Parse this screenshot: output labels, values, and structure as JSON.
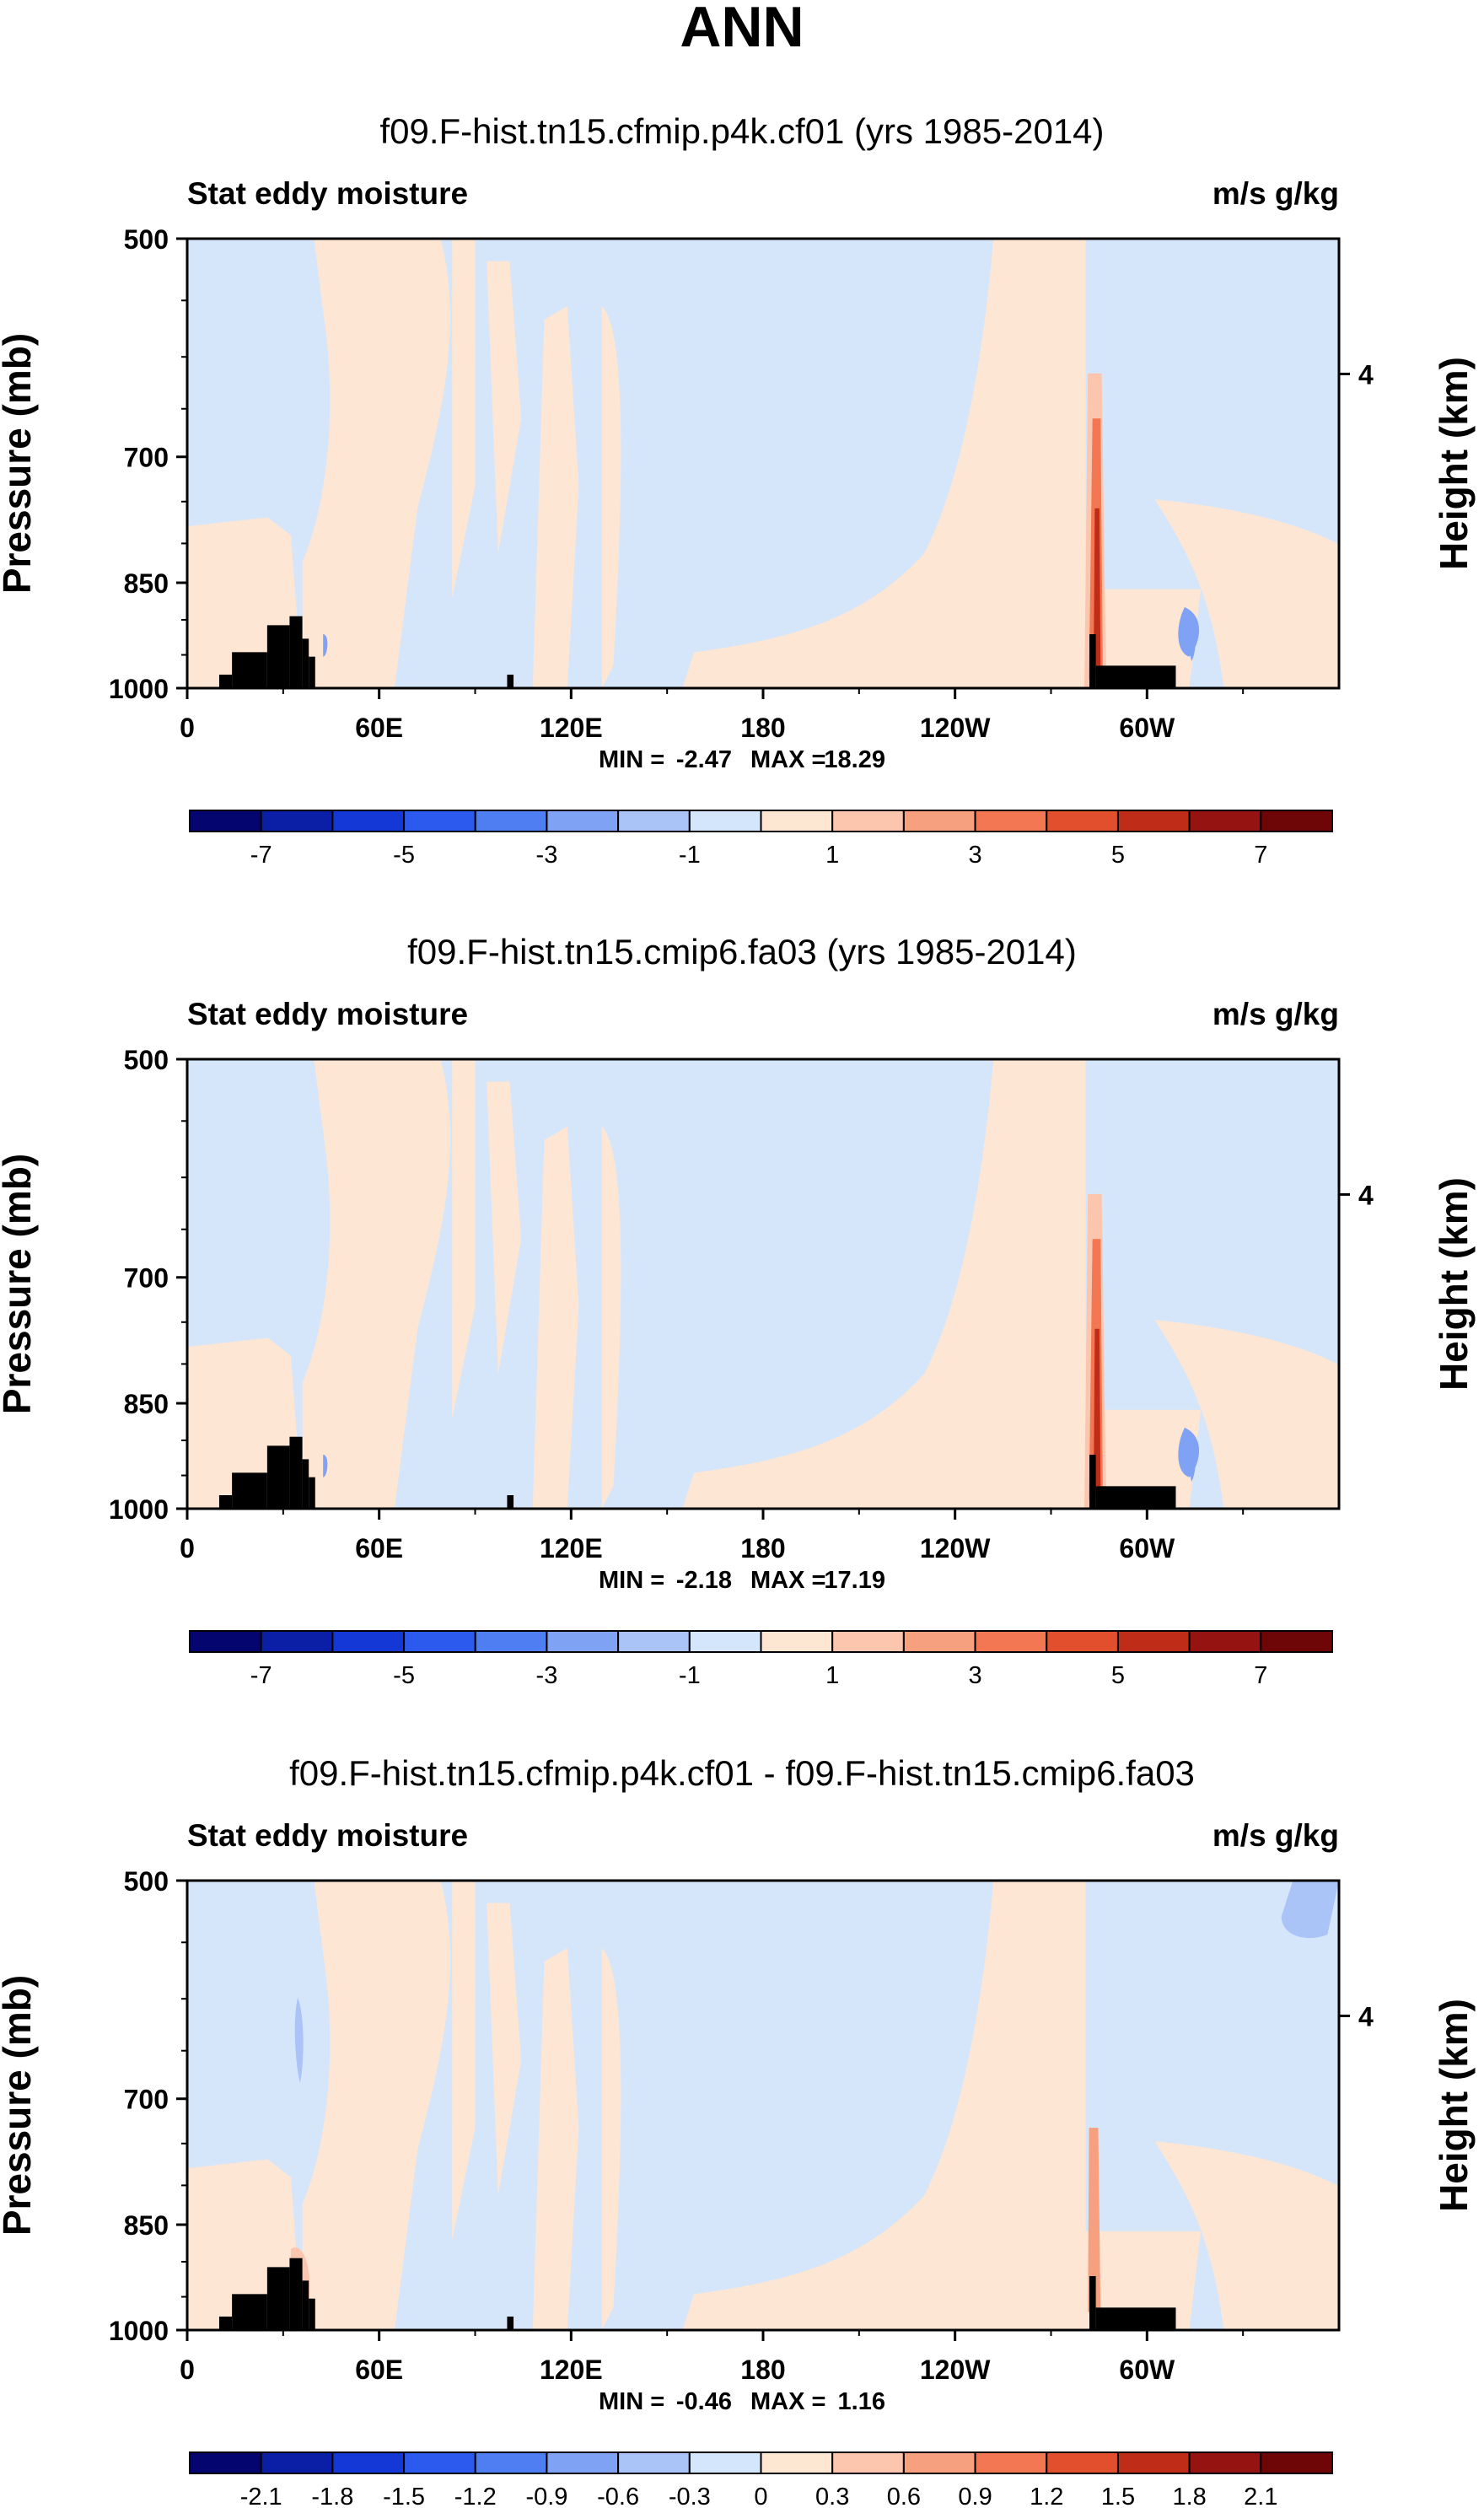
{
  "figure_title": "ANN",
  "colors": {
    "diverging": [
      "#04056e",
      "#0a1fa6",
      "#1338d6",
      "#2c59ee",
      "#4f7df2",
      "#7fa2f4",
      "#aac4f8",
      "#d4e6fb",
      "#fde6d2",
      "#fbc6ad",
      "#f7a07f",
      "#f27752",
      "#e24f2c",
      "#bf2c17",
      "#951411",
      "#6e0608"
    ],
    "ocean_blue": "#d6e6fa",
    "land_orange": "#fde6d4",
    "topo_fill": "#000000"
  },
  "chart_data": [
    {
      "type": "contour",
      "title": "f09.F-hist.tn15.cfmip.p4k.cf01 (yrs 1985-2014)",
      "left_label": "Stat eddy moisture",
      "right_label": "m/s g/kg",
      "ylabel": "Pressure (mb)",
      "ylabel_right": "Height (km)",
      "yticks": [
        "500",
        "700",
        "850",
        "1000"
      ],
      "ytick_values": [
        500,
        700,
        850,
        1000
      ],
      "right_ticks": [
        "4"
      ],
      "right_tick_pressure": 616,
      "xticks": [
        "0",
        "60E",
        "120E",
        "180",
        "120W",
        "60W"
      ],
      "xtick_lon": [
        0,
        60,
        120,
        180,
        240,
        300
      ],
      "xlim": [
        0,
        360
      ],
      "ylim": [
        1000,
        500
      ],
      "min_label": "MIN =",
      "min_value": "-2.47",
      "max_label": "MAX =",
      "max_value": "18.29",
      "colorbar_labels": [
        "-7",
        "-5",
        "-3",
        "-1",
        "1",
        "3",
        "5",
        "7"
      ],
      "contour_levels": [
        -7,
        -6,
        -5,
        -4,
        -3,
        -2,
        -1,
        0,
        1,
        2,
        3,
        4,
        5,
        6,
        7
      ]
    },
    {
      "type": "contour",
      "title": "f09.F-hist.tn15.cmip6.fa03 (yrs 1985-2014)",
      "left_label": "Stat eddy moisture",
      "right_label": "m/s g/kg",
      "ylabel": "Pressure (mb)",
      "ylabel_right": "Height (km)",
      "yticks": [
        "500",
        "700",
        "850",
        "1000"
      ],
      "ytick_values": [
        500,
        700,
        850,
        1000
      ],
      "right_ticks": [
        "4"
      ],
      "right_tick_pressure": 616,
      "xticks": [
        "0",
        "60E",
        "120E",
        "180",
        "120W",
        "60W"
      ],
      "xtick_lon": [
        0,
        60,
        120,
        180,
        240,
        300
      ],
      "xlim": [
        0,
        360
      ],
      "ylim": [
        1000,
        500
      ],
      "min_label": "MIN =",
      "min_value": "-2.18",
      "max_label": "MAX =",
      "max_value": "17.19",
      "colorbar_labels": [
        "-7",
        "-5",
        "-3",
        "-1",
        "1",
        "3",
        "5",
        "7"
      ],
      "contour_levels": [
        -7,
        -6,
        -5,
        -4,
        -3,
        -2,
        -1,
        0,
        1,
        2,
        3,
        4,
        5,
        6,
        7
      ]
    },
    {
      "type": "contour",
      "title": "f09.F-hist.tn15.cfmip.p4k.cf01 - f09.F-hist.tn15.cmip6.fa03",
      "left_label": "Stat eddy moisture",
      "right_label": "m/s g/kg",
      "ylabel": "Pressure (mb)",
      "ylabel_right": "Height (km)",
      "yticks": [
        "500",
        "700",
        "850",
        "1000"
      ],
      "ytick_values": [
        500,
        700,
        850,
        1000
      ],
      "right_ticks": [
        "4"
      ],
      "right_tick_pressure": 616,
      "xticks": [
        "0",
        "60E",
        "120E",
        "180",
        "120W",
        "60W"
      ],
      "xtick_lon": [
        0,
        60,
        120,
        180,
        240,
        300
      ],
      "xlim": [
        0,
        360
      ],
      "ylim": [
        1000,
        500
      ],
      "min_label": "MIN =",
      "min_value": "-0.46",
      "max_label": "MAX =",
      "max_value": "1.16",
      "colorbar_labels": [
        "-2.1",
        "-1.8",
        "-1.5",
        "-1.2",
        "-0.9",
        "-0.6",
        "-0.3",
        "0",
        "0.3",
        "0.6",
        "0.9",
        "1.2",
        "1.5",
        "1.8",
        "2.1"
      ],
      "contour_levels": [
        -2.1,
        -1.8,
        -1.5,
        -1.2,
        -0.9,
        -0.6,
        -0.3,
        0,
        0.3,
        0.6,
        0.9,
        1.2,
        1.5,
        1.8,
        2.1
      ]
    }
  ]
}
